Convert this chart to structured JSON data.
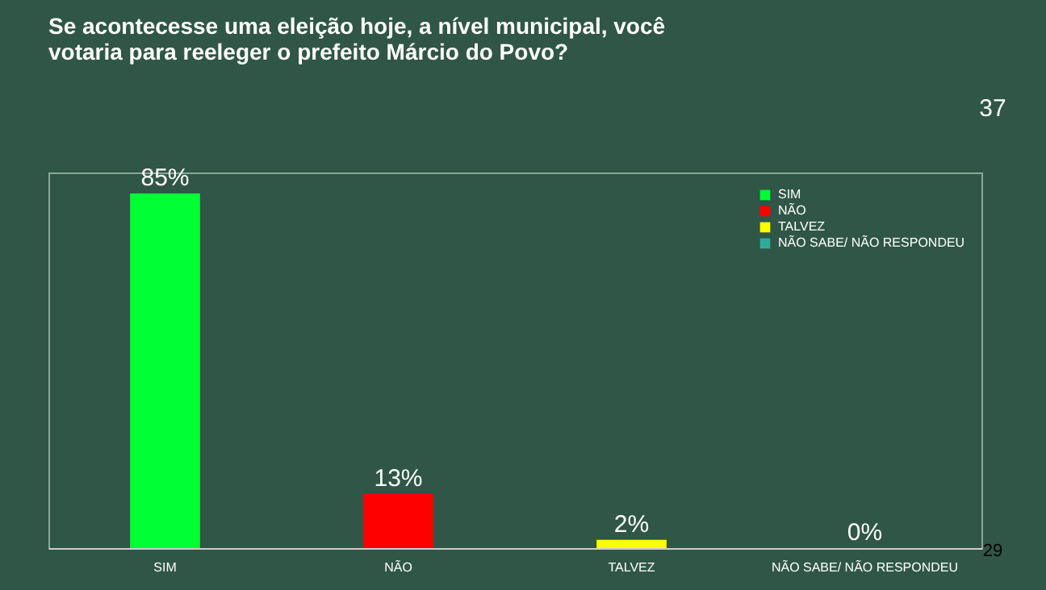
{
  "chart_data": {
    "type": "bar",
    "title": "Se acontecesse uma eleição hoje, a nível municipal, você votaria para reeleger o prefeito Márcio do Povo?",
    "categories": [
      "SIM",
      "NÃO",
      "TALVEZ",
      "NÃO SABE/ NÃO RESPONDEU"
    ],
    "series": [
      {
        "name": "SIM",
        "color": "#00ff33",
        "values": [
          85,
          null,
          null,
          null
        ],
        "value_labels": [
          "85%",
          null,
          null,
          null
        ]
      },
      {
        "name": "NÃO",
        "color": "#ff0000",
        "values": [
          null,
          13,
          null,
          null
        ],
        "value_labels": [
          null,
          "13%",
          null,
          null
        ]
      },
      {
        "name": "TALVEZ",
        "color": "#ffff00",
        "values": [
          null,
          null,
          2,
          null
        ],
        "value_labels": [
          null,
          null,
          "2%",
          null
        ]
      },
      {
        "name": "NÃO SABE/ NÃO RESPONDEU",
        "color": "#33aa99",
        "values": [
          null,
          null,
          null,
          0
        ],
        "value_labels": [
          null,
          null,
          null,
          "0%"
        ]
      }
    ],
    "legend": "top right",
    "annotations": [
      "37",
      "29"
    ]
  }
}
